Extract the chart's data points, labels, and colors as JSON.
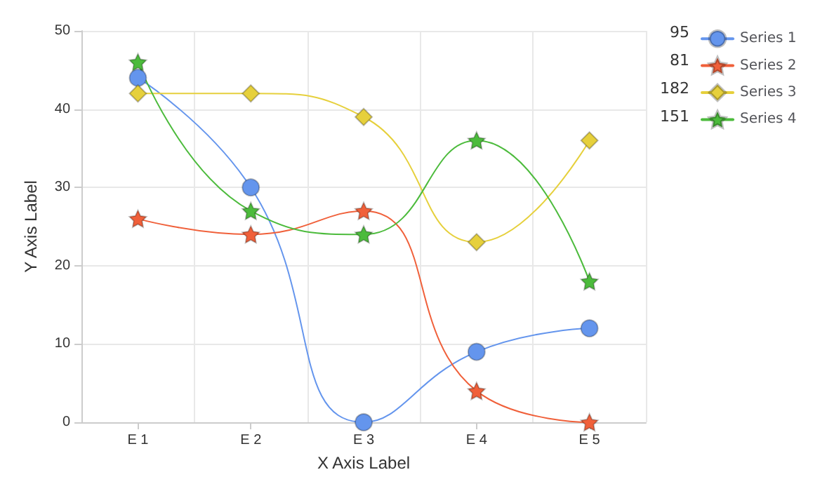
{
  "chart_data": {
    "type": "line",
    "xlabel": "X Axis Label",
    "ylabel": "Y Axis Label",
    "categories": [
      "E 1",
      "E 2",
      "E 3",
      "E 4",
      "E 5"
    ],
    "series": [
      {
        "name": "Series 1",
        "color": "#6495ed",
        "marker": "circle",
        "values": [
          44,
          30,
          0,
          9,
          12
        ]
      },
      {
        "name": "Series 2",
        "color": "#f0603a",
        "marker": "star",
        "values": [
          26,
          24,
          27,
          4,
          0
        ]
      },
      {
        "name": "Series 3",
        "color": "#e6d03c",
        "marker": "diamond",
        "values": [
          42,
          42,
          39,
          23,
          36
        ]
      },
      {
        "name": "Series 4",
        "color": "#4cbb3c",
        "marker": "star",
        "values": [
          46,
          27,
          24,
          36,
          18
        ]
      }
    ],
    "totals": [
      "95",
      "81",
      "182",
      "151"
    ],
    "ylim": [
      0,
      50
    ],
    "yticks": [
      0,
      10,
      20,
      30,
      40,
      50
    ],
    "grid": true,
    "legend": "top right"
  }
}
